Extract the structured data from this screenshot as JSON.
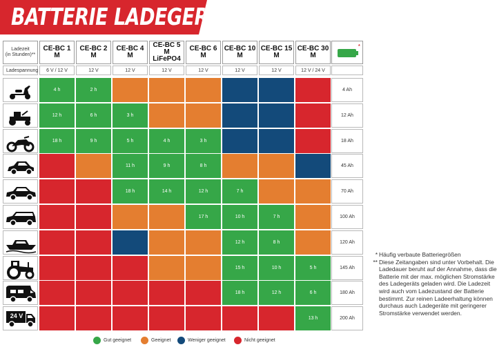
{
  "title": "BATTERIE LADEGERÄTE",
  "header": {
    "corner_label": "Ladezeit\n(in Stunden)**",
    "models": [
      "CE-BC 1 M",
      "CE-BC 2 M",
      "CE-BC 4 M",
      "CE-BC 5 M\nLiFePO4",
      "CE-BC 6 M",
      "CE-BC 10 M",
      "CE-BC 15 M",
      "CE-BC 30 M"
    ],
    "battery_icon": "battery-full-icon",
    "battery_star": "*"
  },
  "voltage": {
    "label": "Ladespannung",
    "values": [
      "6 V / 12 V",
      "12 V",
      "12 V",
      "12 V",
      "12 V",
      "12 V",
      "12 V",
      "12 V / 24 V"
    ]
  },
  "rows": [
    {
      "icon": "scooter-icon",
      "capacity": "4 Ah",
      "cells": [
        {
          "s": "g",
          "t": "4 h"
        },
        {
          "s": "g",
          "t": "2 h"
        },
        {
          "s": "o",
          "t": ""
        },
        {
          "s": "o",
          "t": ""
        },
        {
          "s": "o",
          "t": ""
        },
        {
          "s": "b",
          "t": ""
        },
        {
          "s": "b",
          "t": ""
        },
        {
          "s": "r",
          "t": ""
        }
      ]
    },
    {
      "icon": "ride-on-mower-icon",
      "capacity": "12 Ah",
      "cells": [
        {
          "s": "g",
          "t": "12 h"
        },
        {
          "s": "g",
          "t": "6 h"
        },
        {
          "s": "g",
          "t": "3 h"
        },
        {
          "s": "o",
          "t": ""
        },
        {
          "s": "o",
          "t": ""
        },
        {
          "s": "b",
          "t": ""
        },
        {
          "s": "b",
          "t": ""
        },
        {
          "s": "r",
          "t": ""
        }
      ]
    },
    {
      "icon": "motorcycle-icon",
      "capacity": "18 Ah",
      "cells": [
        {
          "s": "g",
          "t": "18 h"
        },
        {
          "s": "g",
          "t": "9 h"
        },
        {
          "s": "g",
          "t": "5 h"
        },
        {
          "s": "g",
          "t": "4 h"
        },
        {
          "s": "g",
          "t": "3 h"
        },
        {
          "s": "b",
          "t": ""
        },
        {
          "s": "b",
          "t": ""
        },
        {
          "s": "r",
          "t": ""
        }
      ]
    },
    {
      "icon": "small-car-icon",
      "capacity": "45 Ah",
      "cells": [
        {
          "s": "r",
          "t": ""
        },
        {
          "s": "o",
          "t": ""
        },
        {
          "s": "g",
          "t": "11 h"
        },
        {
          "s": "g",
          "t": "9 h"
        },
        {
          "s": "g",
          "t": "8 h"
        },
        {
          "s": "o",
          "t": ""
        },
        {
          "s": "o",
          "t": ""
        },
        {
          "s": "b",
          "t": ""
        }
      ]
    },
    {
      "icon": "sedan-car-icon",
      "capacity": "70 Ah",
      "cells": [
        {
          "s": "r",
          "t": ""
        },
        {
          "s": "r",
          "t": ""
        },
        {
          "s": "g",
          "t": "18 h"
        },
        {
          "s": "g",
          "t": "14 h"
        },
        {
          "s": "g",
          "t": "12 h"
        },
        {
          "s": "g",
          "t": "7 h"
        },
        {
          "s": "o",
          "t": ""
        },
        {
          "s": "o",
          "t": ""
        }
      ]
    },
    {
      "icon": "station-wagon-icon",
      "capacity": "100 Ah",
      "cells": [
        {
          "s": "r",
          "t": ""
        },
        {
          "s": "r",
          "t": ""
        },
        {
          "s": "o",
          "t": ""
        },
        {
          "s": "o",
          "t": ""
        },
        {
          "s": "g",
          "t": "17 h"
        },
        {
          "s": "g",
          "t": "10 h"
        },
        {
          "s": "g",
          "t": "7 h"
        },
        {
          "s": "o",
          "t": ""
        }
      ]
    },
    {
      "icon": "boat-icon",
      "capacity": "120 Ah",
      "cells": [
        {
          "s": "r",
          "t": ""
        },
        {
          "s": "r",
          "t": ""
        },
        {
          "s": "b",
          "t": ""
        },
        {
          "s": "o",
          "t": ""
        },
        {
          "s": "o",
          "t": ""
        },
        {
          "s": "g",
          "t": "12 h"
        },
        {
          "s": "g",
          "t": "8 h"
        },
        {
          "s": "o",
          "t": ""
        }
      ]
    },
    {
      "icon": "tractor-icon",
      "capacity": "145 Ah",
      "cells": [
        {
          "s": "r",
          "t": ""
        },
        {
          "s": "r",
          "t": ""
        },
        {
          "s": "r",
          "t": ""
        },
        {
          "s": "o",
          "t": ""
        },
        {
          "s": "o",
          "t": ""
        },
        {
          "s": "g",
          "t": "15 h"
        },
        {
          "s": "g",
          "t": "10 h"
        },
        {
          "s": "g",
          "t": "5 h"
        }
      ]
    },
    {
      "icon": "motorhome-icon",
      "capacity": "180 Ah",
      "cells": [
        {
          "s": "r",
          "t": ""
        },
        {
          "s": "r",
          "t": ""
        },
        {
          "s": "r",
          "t": ""
        },
        {
          "s": "r",
          "t": ""
        },
        {
          "s": "r",
          "t": ""
        },
        {
          "s": "g",
          "t": "18 h"
        },
        {
          "s": "g",
          "t": "12 h"
        },
        {
          "s": "g",
          "t": "6 h"
        }
      ]
    },
    {
      "icon": "truck-24v-icon",
      "icon_text": "24 V",
      "capacity": "200 Ah",
      "cells": [
        {
          "s": "r",
          "t": ""
        },
        {
          "s": "r",
          "t": ""
        },
        {
          "s": "r",
          "t": ""
        },
        {
          "s": "r",
          "t": ""
        },
        {
          "s": "r",
          "t": ""
        },
        {
          "s": "r",
          "t": ""
        },
        {
          "s": "r",
          "t": ""
        },
        {
          "s": "g",
          "t": "13 h"
        }
      ]
    }
  ],
  "legend": [
    {
      "key": "g",
      "label": "Gut geeignet",
      "color": "#36a748"
    },
    {
      "key": "o",
      "label": "Geeignet",
      "color": "#e47e30"
    },
    {
      "key": "b",
      "label": "Weniger geeignet",
      "color": "#134a7a"
    },
    {
      "key": "r",
      "label": "Nicht geeignet",
      "color": "#d7262d"
    }
  ],
  "colors": {
    "g": "#36a748",
    "o": "#e47e30",
    "b": "#134a7a",
    "r": "#d7262d",
    "banner": "#d7262d"
  },
  "notes": [
    {
      "marker": "*",
      "text": "Häufig verbaute Batteriegrößen"
    },
    {
      "marker": "**",
      "text": "Diese Zeitangaben sind unter Vorbehalt. Die Ladedauer beruht auf der Annahme, dass die Batterie mit der max. möglichen Stromstärke des Ladegeräts geladen wird. Die Ladezeit wird auch vom Ladezustand der Batterie bestimmt. Zur reinen Ladeerhaltung können durchaus auch Ladegeräte mit geringerer Stromstärke verwendet werden."
    }
  ]
}
